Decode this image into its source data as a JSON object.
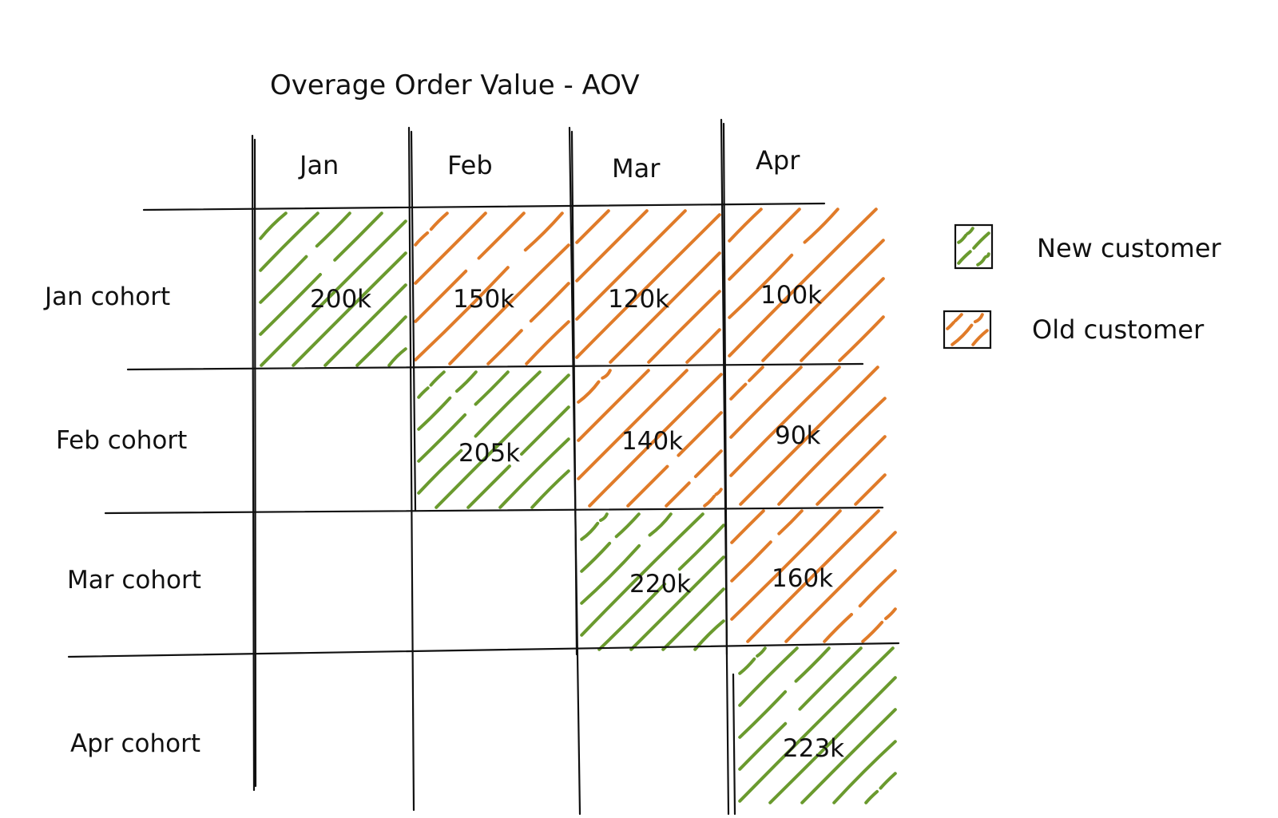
{
  "title": "Overage Order Value - AOV",
  "colors": {
    "new": "#6a9a2e",
    "old": "#e07b29",
    "ink": "#111111"
  },
  "columns": [
    "Jan",
    "Feb",
    "Mar",
    "Apr"
  ],
  "rows": [
    "Jan cohort",
    "Feb cohort",
    "Mar cohort",
    "Apr cohort"
  ],
  "cells": [
    {
      "label": "200k",
      "type": "new"
    },
    {
      "label": "150k",
      "type": "old"
    },
    {
      "label": "120k",
      "type": "old"
    },
    {
      "label": "100k",
      "type": "old"
    },
    {
      "label": "205k",
      "type": "new"
    },
    {
      "label": "140k",
      "type": "old"
    },
    {
      "label": "90k",
      "type": "old"
    },
    {
      "label": "220k",
      "type": "new"
    },
    {
      "label": "160k",
      "type": "old"
    },
    {
      "label": "223k",
      "type": "new"
    }
  ],
  "legend": [
    {
      "label": "New customer",
      "type": "new"
    },
    {
      "label": "Old customer",
      "type": "old"
    }
  ]
}
